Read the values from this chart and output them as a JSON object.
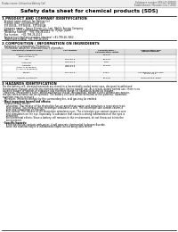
{
  "header_left": "Product name: Lithium Ion Battery Cell",
  "header_right": "Substance number: SDS-L01-000010\nEstablishment / Revision: Dec.7,2010",
  "title": "Safety data sheet for chemical products (SDS)",
  "section1_title": "1 PRODUCT AND COMPANY IDENTIFICATION",
  "section1_lines": [
    "· Product name: Lithium Ion Battery Cell",
    "· Product code: Cylindrical-type cell",
    "  SYF18650L, SYF18650L, SYF18650A",
    "· Company name:   Sanyo Electric Co., Ltd., Mobile Energy Company",
    "· Address:   2001 Kamionosen, Sumoto-City, Hyogo, Japan",
    "· Telephone number:   +81-799-26-4111",
    "· Fax number:   +81-799-26-4123",
    "· Emergency telephone number (daytime) +81-799-26-3562",
    "  (Night and holiday) +81-799-26-4131"
  ],
  "section2_title": "2 COMPOSITION / INFORMATION ON INGREDIENTS",
  "section2_sub": "· Substance or preparation: Preparation",
  "section2_sub2": "· Information about the chemical nature of product:",
  "table_headers": [
    "Component/chemical name",
    "CAS number",
    "Concentration /\nConcentration range",
    "Classification and\nhazard labeling"
  ],
  "table_rows": [
    [
      "Lithium cobalt oxide\n(LiMn-Co-PbO4)",
      "-",
      "30-65%",
      ""
    ],
    [
      "Iron",
      "7439-89-6",
      "15-25%",
      "-"
    ],
    [
      "Aluminum",
      "7429-90-5",
      "2-8%",
      "-"
    ],
    [
      "Graphite\n(flake or graphite1)\n(AI-Mo or graphite1)",
      "7782-42-5\n7782-44-2",
      "10-25%",
      "-"
    ],
    [
      "Copper",
      "7440-50-8",
      "5-15%",
      "Sensitization of the skin\ngroup No.2"
    ],
    [
      "Organic electrolyte",
      "-",
      "10-20%",
      "Inflammable liquid"
    ]
  ],
  "section3_title": "3 HAZARDS IDENTIFICATION",
  "section3_para": [
    "For the battery cell, chemical materials are stored in a hermetically sealed metal case, designed to withstand",
    "temperature changes and electro-chemical reactions during normal use. As a result, during normal use, there is no",
    "physical danger of ignition or explosion and therefore danger of hazardous materials leakage.",
    "  However, if exposed to a fire, added mechanical shocks, decomposed, written electro without any misuse,",
    "the gas release vents can be operated. The battery cell case will be breached or fire-patterns, hazardous",
    "materials may be released.",
    "  Moreover, if heated strongly by the surrounding fire, acid gas may be emitted."
  ],
  "section3_sub1": "· Most important hazard and effects:",
  "section3_sub1_lines": [
    "Human health effects:",
    "  Inhalation: The release of the electrolyte has an anesthesia action and stimulates a respiratory tract.",
    "  Skin contact: The release of the electrolyte stimulates a skin. The electrolyte skin contact causes a",
    "  sore and stimulation on the skin.",
    "  Eye contact: The release of the electrolyte stimulates eyes. The electrolyte eye contact causes a sore",
    "  and stimulation on the eye. Especially, a substance that causes a strong inflammation of the eyes is",
    "  contained.",
    "  Environmental effects: Since a battery cell remains in the environment, do not throw out it into the",
    "  environment."
  ],
  "section3_sub2": "· Specific hazards:",
  "section3_sub2_lines": [
    "  If the electrolyte contacts with water, it will generate detrimental hydrogen fluoride.",
    "  Since the said electrolyte is inflammable liquid, do not bring close to fire."
  ],
  "bg_color": "#ffffff",
  "header_bg": "#eeeeee",
  "table_header_bg": "#dddddd"
}
